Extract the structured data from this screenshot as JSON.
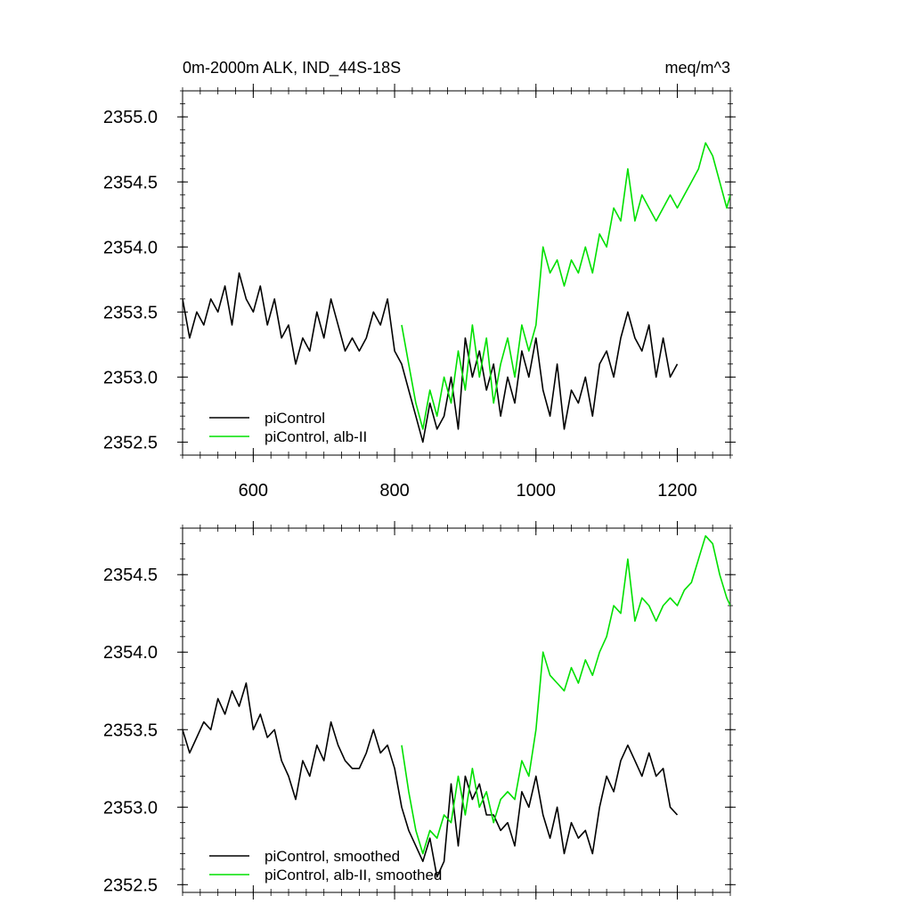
{
  "chart_data": [
    {
      "type": "line",
      "title": "0m-2000m ALK, IND_44S-18S",
      "units": "meq/m^3",
      "xlim": [
        500,
        1275
      ],
      "ylim": [
        2352.4,
        2355.2
      ],
      "xticks": [
        600,
        800,
        1000,
        1200
      ],
      "yticks": [
        2352.5,
        2353.0,
        2353.5,
        2354.0,
        2354.5,
        2355.0
      ],
      "ytick_labels": [
        "2352.5",
        "2353.0",
        "2353.5",
        "2354.0",
        "2354.5",
        "2355.0"
      ],
      "xtick_labels": [
        "600",
        "800",
        "1000",
        "1200"
      ],
      "grid": false,
      "legend_position": "bottom-left",
      "series": [
        {
          "name": "piControl",
          "color": "#000000",
          "x": [
            500,
            510,
            520,
            530,
            540,
            550,
            560,
            570,
            580,
            590,
            600,
            610,
            620,
            630,
            640,
            650,
            660,
            670,
            680,
            690,
            700,
            710,
            720,
            730,
            740,
            750,
            760,
            770,
            780,
            790,
            800,
            810,
            820,
            830,
            840,
            850,
            860,
            870,
            880,
            890,
            900,
            910,
            920,
            930,
            940,
            950,
            960,
            970,
            980,
            990,
            1000,
            1010,
            1020,
            1030,
            1040,
            1050,
            1060,
            1070,
            1080,
            1090,
            1100,
            1110,
            1120,
            1130,
            1140,
            1150,
            1160,
            1170,
            1180,
            1190,
            1200
          ],
          "y": [
            2353.6,
            2353.3,
            2353.5,
            2353.4,
            2353.6,
            2353.5,
            2353.7,
            2353.4,
            2353.8,
            2353.6,
            2353.5,
            2353.7,
            2353.4,
            2353.6,
            2353.3,
            2353.4,
            2353.1,
            2353.3,
            2353.2,
            2353.5,
            2353.3,
            2353.6,
            2353.4,
            2353.2,
            2353.3,
            2353.2,
            2353.3,
            2353.5,
            2353.4,
            2353.6,
            2353.2,
            2353.1,
            2352.9,
            2352.7,
            2352.5,
            2352.8,
            2352.6,
            2352.7,
            2353.0,
            2352.6,
            2353.3,
            2353.0,
            2353.2,
            2352.9,
            2353.1,
            2352.7,
            2353.0,
            2352.8,
            2353.2,
            2353.0,
            2353.3,
            2352.9,
            2352.7,
            2353.1,
            2352.6,
            2352.9,
            2352.8,
            2353.0,
            2352.7,
            2353.1,
            2353.2,
            2353.0,
            2353.3,
            2353.5,
            2353.3,
            2353.2,
            2353.4,
            2353.0,
            2353.3,
            2353.0,
            2353.1
          ]
        },
        {
          "name": "piControl, alb-II",
          "color": "#00e000",
          "x": [
            810,
            820,
            830,
            840,
            850,
            860,
            870,
            880,
            890,
            900,
            910,
            920,
            930,
            940,
            950,
            960,
            970,
            980,
            990,
            1000,
            1010,
            1020,
            1030,
            1040,
            1050,
            1060,
            1070,
            1080,
            1090,
            1100,
            1110,
            1120,
            1130,
            1140,
            1150,
            1160,
            1170,
            1180,
            1190,
            1200,
            1210,
            1220,
            1230,
            1240,
            1250,
            1260,
            1270,
            1275
          ],
          "y": [
            2353.4,
            2353.1,
            2352.8,
            2352.6,
            2352.9,
            2352.7,
            2353.0,
            2352.8,
            2353.2,
            2352.9,
            2353.4,
            2353.0,
            2353.3,
            2352.8,
            2353.1,
            2353.3,
            2353.0,
            2353.4,
            2353.2,
            2353.4,
            2354.0,
            2353.8,
            2353.9,
            2353.7,
            2353.9,
            2353.8,
            2354.0,
            2353.8,
            2354.1,
            2354.0,
            2354.3,
            2354.2,
            2354.6,
            2354.2,
            2354.4,
            2354.3,
            2354.2,
            2354.3,
            2354.4,
            2354.3,
            2354.4,
            2354.5,
            2354.6,
            2354.8,
            2354.7,
            2354.5,
            2354.3,
            2354.4
          ]
        }
      ]
    },
    {
      "type": "line",
      "title": "",
      "xlim": [
        500,
        1275
      ],
      "ylim": [
        2352.45,
        2354.8
      ],
      "xticks": [
        600,
        800,
        1000,
        1200
      ],
      "yticks": [
        2352.5,
        2353.0,
        2353.5,
        2354.0,
        2354.5
      ],
      "ytick_labels": [
        "2352.5",
        "2353.0",
        "2353.5",
        "2354.0",
        "2354.5"
      ],
      "grid": false,
      "legend_position": "bottom-left",
      "series": [
        {
          "name": "piControl, smoothed",
          "color": "#000000",
          "x": [
            500,
            510,
            520,
            530,
            540,
            550,
            560,
            570,
            580,
            590,
            600,
            610,
            620,
            630,
            640,
            650,
            660,
            670,
            680,
            690,
            700,
            710,
            720,
            730,
            740,
            750,
            760,
            770,
            780,
            790,
            800,
            810,
            820,
            830,
            840,
            850,
            860,
            870,
            880,
            890,
            900,
            910,
            920,
            930,
            940,
            950,
            960,
            970,
            980,
            990,
            1000,
            1010,
            1020,
            1030,
            1040,
            1050,
            1060,
            1070,
            1080,
            1090,
            1100,
            1110,
            1120,
            1130,
            1140,
            1150,
            1160,
            1170,
            1180,
            1190,
            1200
          ],
          "y": [
            2353.5,
            2353.35,
            2353.45,
            2353.55,
            2353.5,
            2353.7,
            2353.6,
            2353.75,
            2353.65,
            2353.8,
            2353.5,
            2353.6,
            2353.45,
            2353.5,
            2353.3,
            2353.2,
            2353.05,
            2353.3,
            2353.2,
            2353.4,
            2353.3,
            2353.55,
            2353.4,
            2353.3,
            2353.25,
            2353.25,
            2353.35,
            2353.5,
            2353.35,
            2353.4,
            2353.25,
            2353.0,
            2352.85,
            2352.75,
            2352.65,
            2352.8,
            2352.55,
            2352.65,
            2353.15,
            2352.75,
            2353.2,
            2353.05,
            2353.15,
            2352.95,
            2352.95,
            2352.85,
            2352.9,
            2352.75,
            2353.1,
            2353.0,
            2353.2,
            2352.95,
            2352.8,
            2353.0,
            2352.7,
            2352.9,
            2352.8,
            2352.85,
            2352.7,
            2353.0,
            2353.2,
            2353.1,
            2353.3,
            2353.4,
            2353.3,
            2353.2,
            2353.35,
            2353.2,
            2353.25,
            2353.0,
            2352.95
          ]
        },
        {
          "name": "piControl, alb-II, smoothed",
          "color": "#00e000",
          "x": [
            810,
            820,
            830,
            840,
            850,
            860,
            870,
            880,
            890,
            900,
            910,
            920,
            930,
            940,
            950,
            960,
            970,
            980,
            990,
            1000,
            1010,
            1020,
            1030,
            1040,
            1050,
            1060,
            1070,
            1080,
            1090,
            1100,
            1110,
            1120,
            1130,
            1140,
            1150,
            1160,
            1170,
            1180,
            1190,
            1200,
            1210,
            1220,
            1230,
            1240,
            1250,
            1260,
            1270,
            1275
          ],
          "y": [
            2353.4,
            2353.1,
            2352.85,
            2352.7,
            2352.85,
            2352.8,
            2352.95,
            2352.9,
            2353.2,
            2352.95,
            2353.25,
            2353.0,
            2353.1,
            2352.9,
            2353.05,
            2353.1,
            2353.05,
            2353.3,
            2353.2,
            2353.5,
            2354.0,
            2353.85,
            2353.8,
            2353.75,
            2353.9,
            2353.8,
            2353.95,
            2353.85,
            2354.0,
            2354.1,
            2354.3,
            2354.25,
            2354.6,
            2354.2,
            2354.35,
            2354.3,
            2354.2,
            2354.3,
            2354.35,
            2354.3,
            2354.4,
            2354.45,
            2354.6,
            2354.75,
            2354.7,
            2354.5,
            2354.35,
            2354.3
          ]
        }
      ]
    }
  ]
}
